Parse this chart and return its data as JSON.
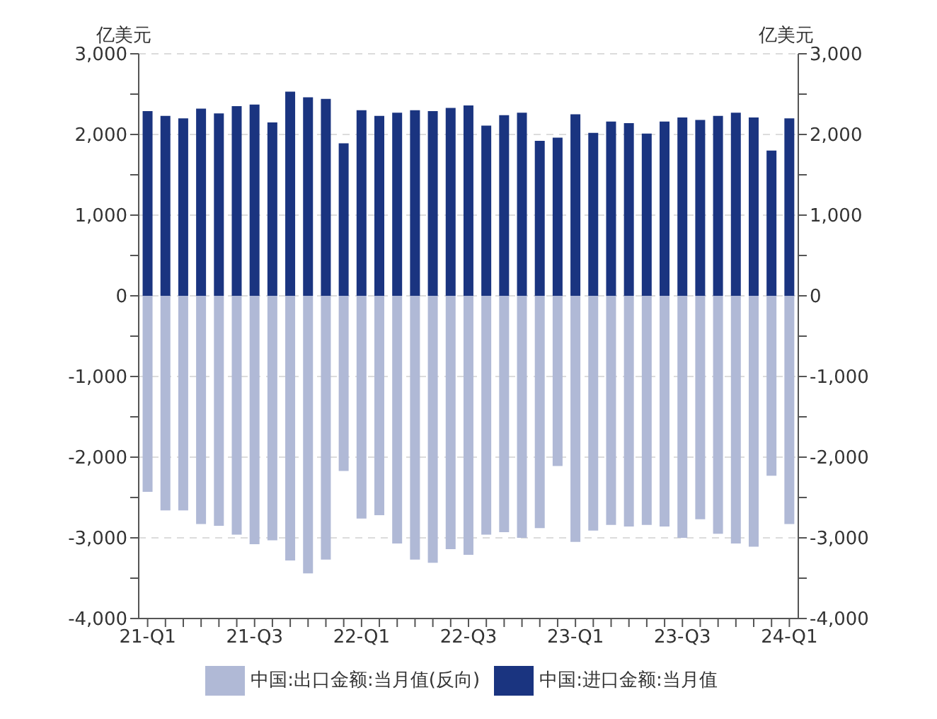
{
  "chart_data": {
    "type": "bar",
    "stacked": true,
    "ylabel": "亿美元",
    "y2label": "亿美元",
    "categories": [
      "21-Q1",
      null,
      null,
      null,
      null,
      null,
      "21-Q3",
      null,
      null,
      null,
      null,
      null,
      "22-Q1",
      null,
      null,
      null,
      null,
      null,
      "22-Q3",
      null,
      null,
      null,
      null,
      null,
      "23-Q1",
      null,
      null,
      null,
      null,
      null,
      "23-Q3",
      null,
      null,
      null,
      null,
      null,
      "24-Q1"
    ],
    "series": [
      {
        "name": "中国:出口金额:当月值(反向)",
        "color": "#b0b9d6",
        "values": [
          -2430,
          -2660,
          -2660,
          -2830,
          -2850,
          -2960,
          -3080,
          -3030,
          -3280,
          -3440,
          -3270,
          -2170,
          -2760,
          -2720,
          -3070,
          -3270,
          -3310,
          -3140,
          -3210,
          -2960,
          -2930,
          -3000,
          -2880,
          -2110,
          -3050,
          -2910,
          -2840,
          -2860,
          -2840,
          -2860,
          -3000,
          -2770,
          -2950,
          -3070,
          -3110,
          -2230,
          -2830
        ]
      },
      {
        "name": "中国:进口金额:当月值",
        "color": "#1a3480",
        "values": [
          2290,
          2230,
          2200,
          2320,
          2260,
          2350,
          2370,
          2150,
          2530,
          2460,
          2440,
          1890,
          2300,
          2230,
          2270,
          2300,
          2290,
          2330,
          2360,
          2110,
          2240,
          2270,
          1920,
          1960,
          2250,
          2020,
          2160,
          2140,
          2010,
          2160,
          2210,
          2180,
          2230,
          2270,
          2210,
          1800,
          2200
        ]
      }
    ],
    "ylim": [
      -4000,
      3000
    ],
    "yticks": [
      {
        "value": -4000,
        "label": "-4,000"
      },
      {
        "value": -3500,
        "label": null
      },
      {
        "value": -3000,
        "label": "-3,000"
      },
      {
        "value": -2500,
        "label": null
      },
      {
        "value": -2000,
        "label": "-2,000"
      },
      {
        "value": -1500,
        "label": null
      },
      {
        "value": -1000,
        "label": "-1,000"
      },
      {
        "value": -500,
        "label": null
      },
      0,
      {
        "value": 500,
        "label": null
      },
      {
        "value": 1000,
        "label": "1,000"
      },
      {
        "value": 1500,
        "label": null
      },
      {
        "value": 2000,
        "label": "2,000"
      },
      {
        "value": 2500,
        "label": null
      },
      {
        "value": 3000,
        "label": "3,000"
      }
    ],
    "y2lim": [
      -4000,
      3000
    ],
    "y2ticks": [
      {
        "value": -4000,
        "label": "-4,000"
      },
      {
        "value": -3500,
        "label": null
      },
      {
        "value": -3000,
        "label": "-3,000"
      },
      {
        "value": -2500,
        "label": null
      },
      {
        "value": -2000,
        "label": "-2,000"
      },
      {
        "value": -1500,
        "label": null
      },
      {
        "value": -1000,
        "label": "-1,000"
      },
      {
        "value": -500,
        "label": null
      },
      0,
      {
        "value": 500,
        "label": null
      },
      {
        "value": 1000,
        "label": "1,000"
      },
      {
        "value": 1500,
        "label": null
      },
      {
        "value": 2000,
        "label": "2,000"
      },
      {
        "value": 2500,
        "label": null
      },
      {
        "value": 3000,
        "label": "3,000"
      }
    ],
    "grid": "y",
    "legend": "bottom"
  }
}
